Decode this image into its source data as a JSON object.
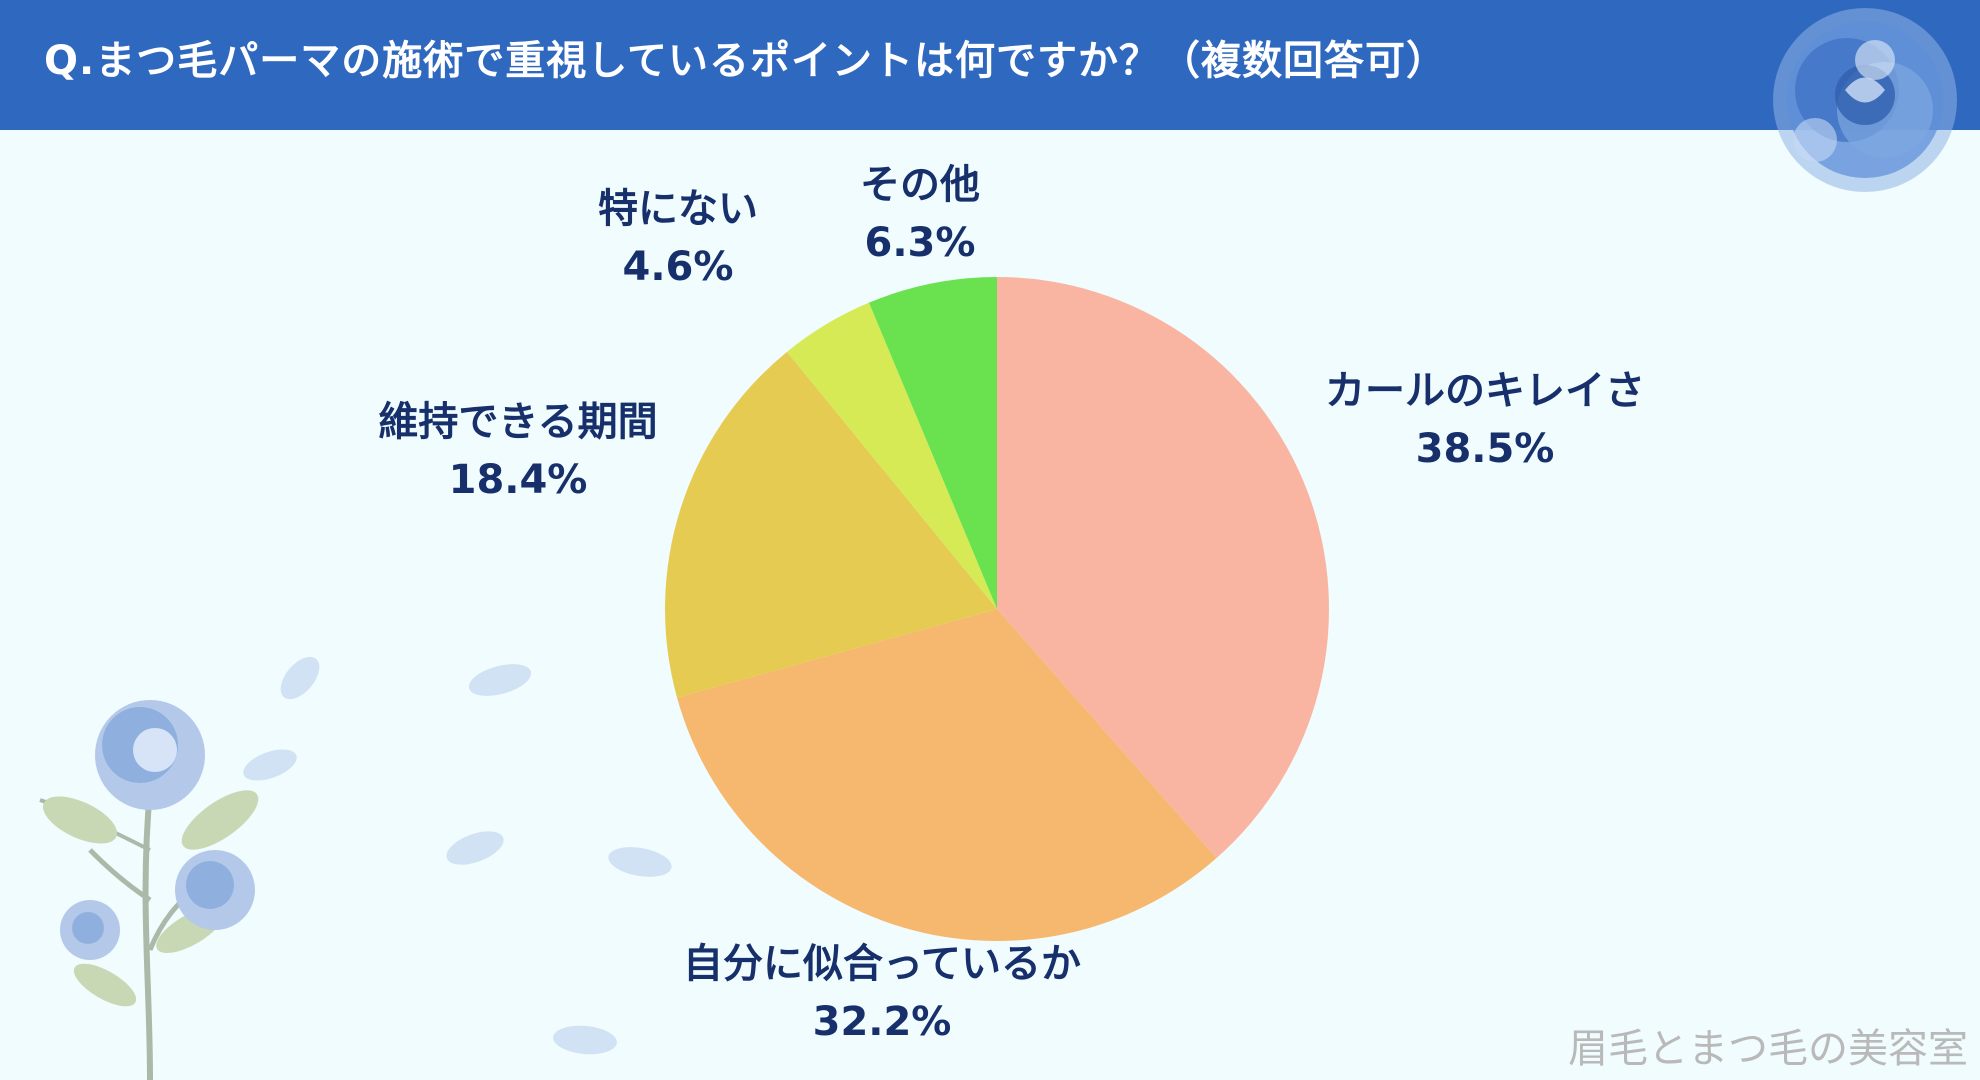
{
  "header": {
    "title": "Q.まつ毛パーマの施術で重視しているポイントは何ですか？（複数回答可）"
  },
  "footer": {
    "brand": "眉毛とまつ毛の美容室"
  },
  "colors": {
    "header_bg": "#2f68bf",
    "background": "#f0fcfd",
    "label_text": "#17306b"
  },
  "chart_data": {
    "type": "pie",
    "title": "Q.まつ毛パーマの施術で重視しているポイントは何ですか？（複数回答可）",
    "unit": "%",
    "start": "12 o'clock, clockwise",
    "slices": [
      {
        "label": "カールのキレイさ",
        "value": 38.5,
        "value_label": "38.5%",
        "color": "#f9b5a1"
      },
      {
        "label": "自分に似合っているか",
        "value": 32.2,
        "value_label": "32.2%",
        "color": "#f5b86e"
      },
      {
        "label": "維持できる期間",
        "value": 18.4,
        "value_label": "18.4%",
        "color": "#e5cb52"
      },
      {
        "label": "特にない",
        "value": 4.6,
        "value_label": "4.6%",
        "color": "#d6ea55"
      },
      {
        "label": "その他",
        "value": 6.3,
        "value_label": "6.3%",
        "color": "#6ae14f"
      }
    ]
  },
  "decorations": {
    "top_right": "blue-rose-icon",
    "bottom_left": "blue-rose-branch-icon"
  }
}
